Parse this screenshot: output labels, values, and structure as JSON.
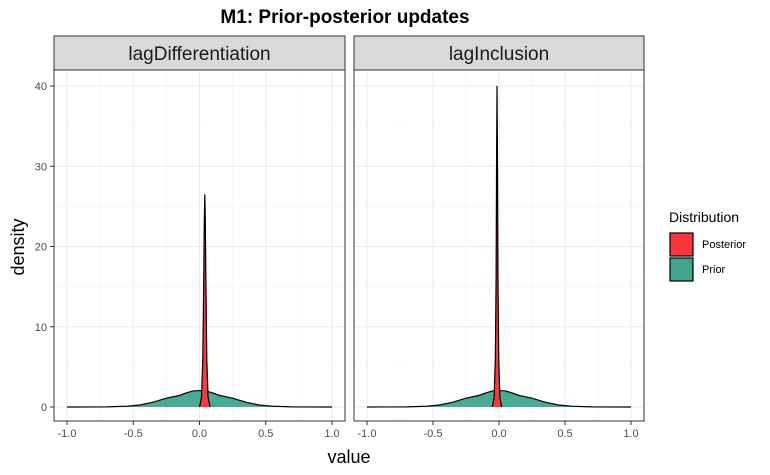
{
  "chart_data": {
    "type": "area",
    "title": "M1: Prior-posterior updates",
    "xlabel": "value",
    "ylabel": "density",
    "xlim": [
      -1.0,
      1.0
    ],
    "ylim": [
      0,
      42
    ],
    "x_ticks": [
      "-1.0",
      "-0.5",
      "0.0",
      "0.5",
      "1.0"
    ],
    "y_ticks": [
      "0",
      "10",
      "20",
      "30",
      "40"
    ],
    "x_tick_values": [
      -1.0,
      -0.5,
      0.0,
      0.5,
      1.0
    ],
    "y_tick_values": [
      0,
      10,
      20,
      30,
      40
    ],
    "grid": true,
    "legend": {
      "title": "Distribution",
      "position": "right",
      "entries": [
        {
          "label": "Posterior",
          "color": "#fb353b"
        },
        {
          "label": "Prior",
          "color": "#41a58d"
        }
      ]
    },
    "panels": [
      {
        "strip": "lagDifferentiation",
        "series": [
          {
            "name": "Prior",
            "color": "#41a58d",
            "x": [
              -1.0,
              -0.7,
              -0.55,
              -0.45,
              -0.35,
              -0.25,
              -0.15,
              -0.1,
              -0.05,
              0.0,
              0.05,
              0.1,
              0.15,
              0.25,
              0.35,
              0.45,
              0.55,
              0.7,
              1.0
            ],
            "y": [
              0,
              0.02,
              0.1,
              0.25,
              0.6,
              1.1,
              1.45,
              1.75,
              2.0,
              2.05,
              2.0,
              1.75,
              1.45,
              1.1,
              0.6,
              0.25,
              0.1,
              0.02,
              0
            ]
          },
          {
            "name": "Posterior",
            "color": "#fb353b",
            "x": [
              0.0,
              0.015,
              0.025,
              0.032,
              0.036,
              0.04,
              0.044,
              0.048,
              0.055,
              0.065,
              0.08
            ],
            "y": [
              0,
              1.2,
              6,
              16,
              23,
              26.5,
              23,
              16,
              6,
              1.2,
              0
            ]
          }
        ]
      },
      {
        "strip": "lagInclusion",
        "series": [
          {
            "name": "Prior",
            "color": "#41a58d",
            "x": [
              -1.0,
              -0.7,
              -0.55,
              -0.45,
              -0.35,
              -0.25,
              -0.15,
              -0.1,
              -0.05,
              0.0,
              0.05,
              0.1,
              0.15,
              0.25,
              0.35,
              0.45,
              0.55,
              0.7,
              1.0
            ],
            "y": [
              0,
              0.02,
              0.1,
              0.25,
              0.6,
              1.1,
              1.45,
              1.75,
              2.0,
              2.05,
              2.0,
              1.75,
              1.45,
              1.1,
              0.6,
              0.25,
              0.1,
              0.02,
              0
            ]
          },
          {
            "name": "Posterior",
            "color": "#fb353b",
            "x": [
              -0.05,
              -0.037,
              -0.028,
              -0.022,
              -0.018,
              -0.015,
              -0.012,
              -0.008,
              -0.002,
              0.007,
              0.02
            ],
            "y": [
              0,
              1.2,
              6,
              16,
              32,
              40,
              32,
              16,
              6,
              1.2,
              0
            ]
          }
        ]
      }
    ]
  }
}
